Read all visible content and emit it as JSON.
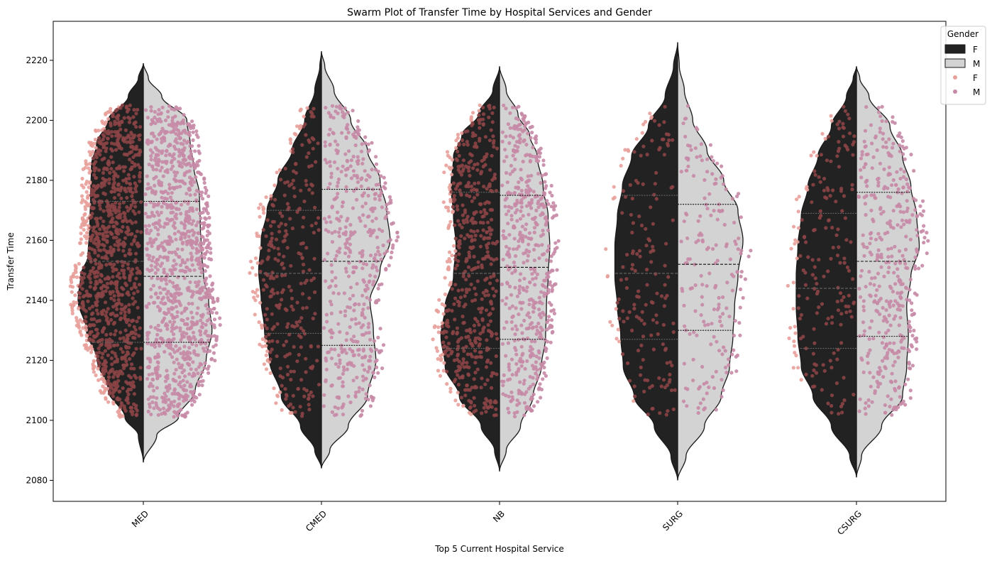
{
  "chart_data": {
    "type": "violin+swarm",
    "title": "Swarm Plot of Transfer Time by Hospital Services and Gender",
    "xlabel": "Top 5 Current Hospital Service",
    "ylabel": "Transfer Time",
    "categories": [
      "MED",
      "CMED",
      "NB",
      "SURG",
      "CSURG"
    ],
    "ylim": [
      2073,
      2233
    ],
    "yticks": [
      2080,
      2100,
      2120,
      2140,
      2160,
      2180,
      2200,
      2220
    ],
    "legend": {
      "title": "Gender",
      "position": "top-right",
      "entries": [
        {
          "label": "F",
          "kind": "violin",
          "color": "#222222"
        },
        {
          "label": "M",
          "kind": "violin",
          "color": "#d3d3d3"
        },
        {
          "label": "F",
          "kind": "swarm",
          "color": "#e8a09a"
        },
        {
          "label": "M",
          "kind": "swarm",
          "color": "#c68aa6"
        }
      ]
    },
    "colors": {
      "violin_f": "#222222",
      "violin_m": "#d3d3d3",
      "swarm_f_outside": "#e8a09a",
      "swarm_f_inside": "#8b4446",
      "swarm_m": "#c68aa6"
    },
    "series": [
      {
        "category": "MED",
        "gender": "F",
        "min": 2086,
        "max": 2219,
        "quartiles": [
          2126,
          2153,
          2173
        ],
        "point_count": 1100,
        "density": [
          [
            2086,
            0.0
          ],
          [
            2095,
            0.06
          ],
          [
            2101,
            0.22
          ],
          [
            2110,
            0.42
          ],
          [
            2120,
            0.55
          ],
          [
            2130,
            0.68
          ],
          [
            2140,
            0.78
          ],
          [
            2148,
            0.75
          ],
          [
            2155,
            0.66
          ],
          [
            2165,
            0.64
          ],
          [
            2175,
            0.63
          ],
          [
            2185,
            0.62
          ],
          [
            2192,
            0.56
          ],
          [
            2200,
            0.42
          ],
          [
            2208,
            0.18
          ],
          [
            2214,
            0.06
          ],
          [
            2219,
            0.0
          ]
        ]
      },
      {
        "category": "MED",
        "gender": "M",
        "min": 2086,
        "max": 2219,
        "quartiles": [
          2126,
          2148,
          2173
        ],
        "point_count": 1100,
        "density": [
          [
            2086,
            0.0
          ],
          [
            2095,
            0.16
          ],
          [
            2101,
            0.42
          ],
          [
            2110,
            0.62
          ],
          [
            2120,
            0.75
          ],
          [
            2130,
            0.82
          ],
          [
            2140,
            0.78
          ],
          [
            2148,
            0.72
          ],
          [
            2155,
            0.7
          ],
          [
            2165,
            0.68
          ],
          [
            2175,
            0.67
          ],
          [
            2185,
            0.6
          ],
          [
            2192,
            0.56
          ],
          [
            2200,
            0.52
          ],
          [
            2208,
            0.22
          ],
          [
            2214,
            0.06
          ],
          [
            2219,
            0.0
          ]
        ]
      },
      {
        "category": "CMED",
        "gender": "F",
        "min": 2084,
        "max": 2223,
        "quartiles": [
          2129,
          2149,
          2170
        ],
        "point_count": 320,
        "density": [
          [
            2084,
            0.0
          ],
          [
            2090,
            0.08
          ],
          [
            2098,
            0.25
          ],
          [
            2108,
            0.48
          ],
          [
            2120,
            0.62
          ],
          [
            2130,
            0.68
          ],
          [
            2140,
            0.72
          ],
          [
            2150,
            0.75
          ],
          [
            2160,
            0.72
          ],
          [
            2170,
            0.65
          ],
          [
            2180,
            0.52
          ],
          [
            2190,
            0.35
          ],
          [
            2200,
            0.2
          ],
          [
            2210,
            0.08
          ],
          [
            2218,
            0.02
          ],
          [
            2223,
            0.0
          ]
        ]
      },
      {
        "category": "CMED",
        "gender": "M",
        "min": 2084,
        "max": 2223,
        "quartiles": [
          2125,
          2153,
          2177
        ],
        "point_count": 480,
        "density": [
          [
            2084,
            0.0
          ],
          [
            2090,
            0.1
          ],
          [
            2098,
            0.32
          ],
          [
            2108,
            0.55
          ],
          [
            2120,
            0.65
          ],
          [
            2130,
            0.62
          ],
          [
            2140,
            0.58
          ],
          [
            2150,
            0.7
          ],
          [
            2160,
            0.82
          ],
          [
            2170,
            0.78
          ],
          [
            2180,
            0.7
          ],
          [
            2190,
            0.55
          ],
          [
            2200,
            0.35
          ],
          [
            2210,
            0.15
          ],
          [
            2218,
            0.04
          ],
          [
            2223,
            0.0
          ]
        ]
      },
      {
        "category": "NB",
        "gender": "F",
        "min": 2083,
        "max": 2218,
        "quartiles": [
          2124,
          2149,
          2176
        ],
        "point_count": 560,
        "density": [
          [
            2083,
            0.0
          ],
          [
            2090,
            0.06
          ],
          [
            2098,
            0.22
          ],
          [
            2108,
            0.48
          ],
          [
            2118,
            0.65
          ],
          [
            2128,
            0.7
          ],
          [
            2138,
            0.65
          ],
          [
            2148,
            0.55
          ],
          [
            2158,
            0.52
          ],
          [
            2168,
            0.55
          ],
          [
            2178,
            0.58
          ],
          [
            2188,
            0.55
          ],
          [
            2195,
            0.45
          ],
          [
            2202,
            0.25
          ],
          [
            2210,
            0.08
          ],
          [
            2218,
            0.0
          ]
        ]
      },
      {
        "category": "NB",
        "gender": "M",
        "min": 2083,
        "max": 2218,
        "quartiles": [
          2127,
          2151,
          2175
        ],
        "point_count": 560,
        "density": [
          [
            2083,
            0.0
          ],
          [
            2090,
            0.08
          ],
          [
            2098,
            0.25
          ],
          [
            2108,
            0.4
          ],
          [
            2118,
            0.5
          ],
          [
            2128,
            0.55
          ],
          [
            2138,
            0.56
          ],
          [
            2148,
            0.58
          ],
          [
            2158,
            0.6
          ],
          [
            2168,
            0.58
          ],
          [
            2178,
            0.52
          ],
          [
            2188,
            0.45
          ],
          [
            2195,
            0.36
          ],
          [
            2202,
            0.22
          ],
          [
            2210,
            0.08
          ],
          [
            2218,
            0.0
          ]
        ]
      },
      {
        "category": "SURG",
        "gender": "F",
        "min": 2080,
        "max": 2226,
        "quartiles": [
          2127,
          2149,
          2175
        ],
        "point_count": 170,
        "density": [
          [
            2080,
            0.0
          ],
          [
            2088,
            0.08
          ],
          [
            2098,
            0.28
          ],
          [
            2108,
            0.52
          ],
          [
            2118,
            0.65
          ],
          [
            2128,
            0.68
          ],
          [
            2138,
            0.72
          ],
          [
            2148,
            0.75
          ],
          [
            2158,
            0.75
          ],
          [
            2168,
            0.72
          ],
          [
            2178,
            0.66
          ],
          [
            2188,
            0.55
          ],
          [
            2198,
            0.35
          ],
          [
            2208,
            0.15
          ],
          [
            2218,
            0.05
          ],
          [
            2226,
            0.0
          ]
        ]
      },
      {
        "category": "SURG",
        "gender": "M",
        "min": 2080,
        "max": 2226,
        "quartiles": [
          2130,
          2152,
          2172
        ],
        "point_count": 190,
        "density": [
          [
            2080,
            0.0
          ],
          [
            2088,
            0.1
          ],
          [
            2098,
            0.32
          ],
          [
            2108,
            0.52
          ],
          [
            2118,
            0.62
          ],
          [
            2128,
            0.66
          ],
          [
            2138,
            0.68
          ],
          [
            2148,
            0.72
          ],
          [
            2160,
            0.78
          ],
          [
            2170,
            0.72
          ],
          [
            2180,
            0.55
          ],
          [
            2190,
            0.35
          ],
          [
            2200,
            0.18
          ],
          [
            2210,
            0.08
          ],
          [
            2218,
            0.02
          ],
          [
            2226,
            0.0
          ]
        ]
      },
      {
        "category": "CSURG",
        "gender": "F",
        "min": 2081,
        "max": 2218,
        "quartiles": [
          2124,
          2144,
          2169
        ],
        "point_count": 190,
        "density": [
          [
            2081,
            0.0
          ],
          [
            2088,
            0.08
          ],
          [
            2098,
            0.3
          ],
          [
            2108,
            0.52
          ],
          [
            2118,
            0.66
          ],
          [
            2128,
            0.7
          ],
          [
            2138,
            0.72
          ],
          [
            2148,
            0.72
          ],
          [
            2158,
            0.7
          ],
          [
            2168,
            0.66
          ],
          [
            2178,
            0.58
          ],
          [
            2188,
            0.46
          ],
          [
            2198,
            0.3
          ],
          [
            2208,
            0.12
          ],
          [
            2214,
            0.04
          ],
          [
            2218,
            0.0
          ]
        ]
      },
      {
        "category": "CSURG",
        "gender": "M",
        "min": 2081,
        "max": 2218,
        "quartiles": [
          2128,
          2153,
          2176
        ],
        "point_count": 420,
        "density": [
          [
            2081,
            0.0
          ],
          [
            2088,
            0.06
          ],
          [
            2098,
            0.3
          ],
          [
            2108,
            0.55
          ],
          [
            2118,
            0.6
          ],
          [
            2128,
            0.62
          ],
          [
            2138,
            0.6
          ],
          [
            2148,
            0.65
          ],
          [
            2158,
            0.75
          ],
          [
            2168,
            0.72
          ],
          [
            2178,
            0.65
          ],
          [
            2188,
            0.55
          ],
          [
            2198,
            0.4
          ],
          [
            2208,
            0.15
          ],
          [
            2214,
            0.04
          ],
          [
            2218,
            0.0
          ]
        ]
      }
    ]
  }
}
